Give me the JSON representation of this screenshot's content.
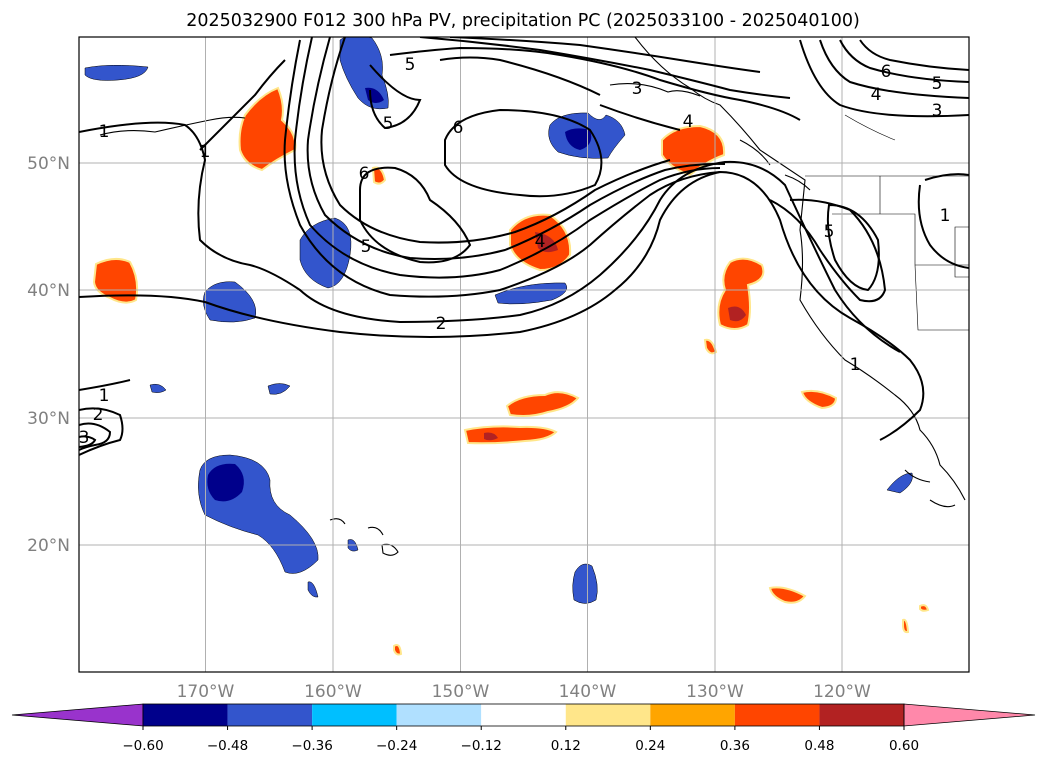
{
  "title": "2025032900 F012 300 hPa PV, precipitation PC (2025033100 - 2025040100)",
  "map": {
    "lon_range": [
      -180,
      -110
    ],
    "lat_range": [
      10,
      60
    ],
    "projection": "PlateCarree",
    "grid": true,
    "lon_ticks": [
      -170,
      -160,
      -150,
      -140,
      -130,
      -120
    ],
    "lon_labels": [
      "170°W",
      "160°W",
      "150°W",
      "140°W",
      "130°W",
      "120°W"
    ],
    "lat_ticks": [
      20,
      30,
      40,
      50
    ],
    "lat_labels": [
      "20°N",
      "30°N",
      "40°N",
      "50°N"
    ]
  },
  "colorbar": {
    "orientation": "horizontal",
    "extend": "both",
    "tick_labels": [
      "−0.60",
      "−0.48",
      "−0.36",
      "−0.24",
      "−0.12",
      "0.12",
      "0.24",
      "0.36",
      "0.48",
      "0.60"
    ],
    "colors": [
      "#9933cc",
      "#00008b",
      "#3355cc",
      "#00bfff",
      "#b0e0ff",
      "#ffffff",
      "#ffe68a",
      "#ffa500",
      "#ff4500",
      "#b22222",
      "#ff88aa"
    ]
  },
  "pv_contour_labels": [
    "1",
    "1",
    "2",
    "3",
    "4",
    "5",
    "6",
    "6",
    "5",
    "4",
    "5",
    "6",
    "3",
    "4",
    "5",
    "1",
    "1",
    "2",
    "3",
    "5",
    "1"
  ]
}
